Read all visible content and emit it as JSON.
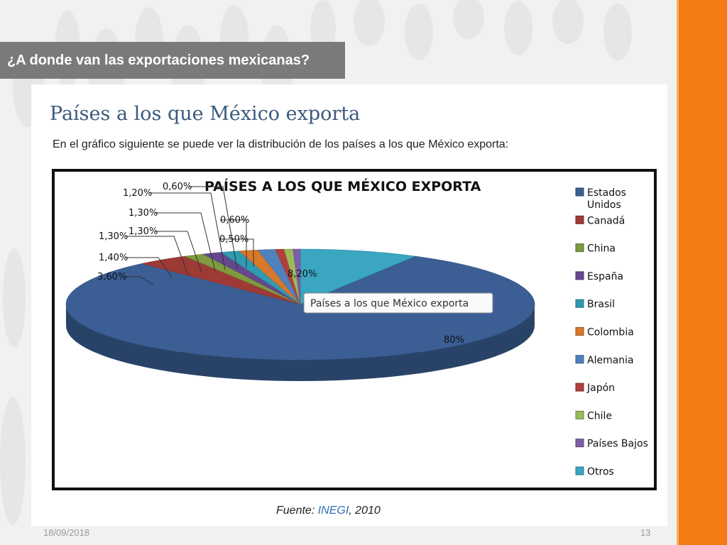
{
  "slide": {
    "title": "¿A donde van las exportaciones mexicanas?",
    "date": "18/09/2018",
    "page_number": "13"
  },
  "content": {
    "heading": "Países a los que México exporta",
    "subtext": "En el gráfico siguiente se puede ver la distribución de los países a los que México exporta:",
    "source_label": "Fuente:",
    "source_org": "INEGI",
    "source_year": ", 2010"
  },
  "chart_data": {
    "type": "pie",
    "title": "PAÍSES A LOS QUE MÉXICO EXPORTA",
    "tooltip": "Países a los que México exporta",
    "legend_position": "right",
    "slices": [
      {
        "label": "Estados Unidos",
        "value": 80,
        "value_label": "80%",
        "color": "#3b5f95"
      },
      {
        "label": "Canadá",
        "value": 3.6,
        "value_label": "3,60%",
        "color": "#9e3a36"
      },
      {
        "label": "China",
        "value": 1.4,
        "value_label": "1,40%",
        "color": "#7f9a3f"
      },
      {
        "label": "España",
        "value": 1.3,
        "value_label": "1,30%",
        "color": "#64478f"
      },
      {
        "label": "Brasil",
        "value": 1.3,
        "value_label": "1,30%",
        "color": "#2f9bb1"
      },
      {
        "label": "Colombia",
        "value": 1.3,
        "value_label": "1,30%",
        "color": "#d9772b"
      },
      {
        "label": "Alemania",
        "value": 1.2,
        "value_label": "1,20%",
        "color": "#4f81bd"
      },
      {
        "label": "Japón",
        "value": 0.6,
        "value_label": "0,60%",
        "color": "#b33f3c"
      },
      {
        "label": "Chile",
        "value": 0.6,
        "value_label": "0,60%",
        "color": "#9bbb59"
      },
      {
        "label": "Países Bajos",
        "value": 0.5,
        "value_label": "0,50%",
        "color": "#7c5fa6"
      },
      {
        "label": "Otros",
        "value": 8.2,
        "value_label": "8,20%",
        "color": "#3aa6bf"
      }
    ]
  }
}
